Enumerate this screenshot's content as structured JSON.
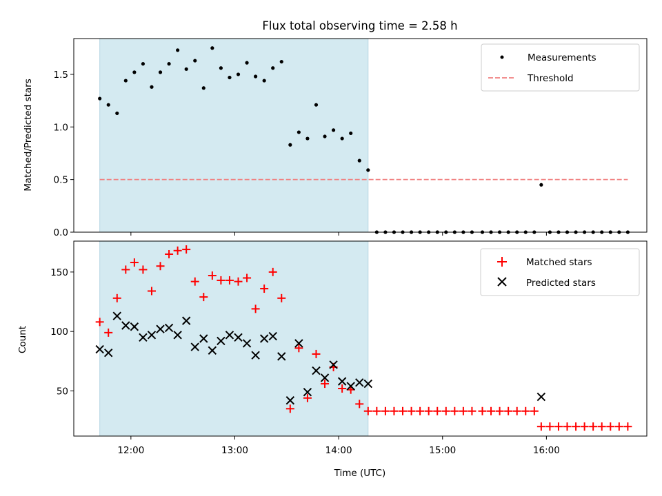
{
  "chart_data": [
    {
      "type": "scatter",
      "title": "Flux total observing time = 2.58 h",
      "ylabel": "Matched/Predicted stars",
      "xlabel": "",
      "xlim": [
        "11:27",
        "16:58"
      ],
      "ylim": [
        0,
        1.84
      ],
      "yticks": [
        0.0,
        0.5,
        1.0,
        1.5
      ],
      "ytick_labels": [
        "0.0",
        "0.5",
        "1.0",
        "1.5"
      ],
      "xticks": [
        "12:00",
        "13:00",
        "14:00",
        "15:00",
        "16:00"
      ],
      "shaded_region": [
        "11:42",
        "14:17"
      ],
      "shaded_color": "#d4eaf1",
      "legend_position": "upper right",
      "series": [
        {
          "name": "Measurements",
          "marker": "dot",
          "color": "#000000",
          "points": [
            [
              "11:42",
              1.27
            ],
            [
              "11:47",
              1.21
            ],
            [
              "11:52",
              1.13
            ],
            [
              "11:57",
              1.44
            ],
            [
              "12:02",
              1.52
            ],
            [
              "12:07",
              1.6
            ],
            [
              "12:12",
              1.38
            ],
            [
              "12:17",
              1.52
            ],
            [
              "12:22",
              1.6
            ],
            [
              "12:27",
              1.73
            ],
            [
              "12:32",
              1.55
            ],
            [
              "12:37",
              1.63
            ],
            [
              "12:42",
              1.37
            ],
            [
              "12:47",
              1.75
            ],
            [
              "12:52",
              1.56
            ],
            [
              "12:57",
              1.47
            ],
            [
              "13:02",
              1.5
            ],
            [
              "13:07",
              1.61
            ],
            [
              "13:12",
              1.48
            ],
            [
              "13:17",
              1.44
            ],
            [
              "13:22",
              1.56
            ],
            [
              "13:27",
              1.62
            ],
            [
              "13:32",
              0.83
            ],
            [
              "13:37",
              0.95
            ],
            [
              "13:42",
              0.89
            ],
            [
              "13:47",
              1.21
            ],
            [
              "13:52",
              0.91
            ],
            [
              "13:57",
              0.97
            ],
            [
              "14:02",
              0.89
            ],
            [
              "14:07",
              0.94
            ],
            [
              "14:12",
              0.68
            ],
            [
              "14:17",
              0.59
            ],
            [
              "14:22",
              0.0
            ],
            [
              "14:27",
              0.0
            ],
            [
              "14:32",
              0.0
            ],
            [
              "14:37",
              0.0
            ],
            [
              "14:42",
              0.0
            ],
            [
              "14:47",
              0.0
            ],
            [
              "14:52",
              0.0
            ],
            [
              "14:57",
              0.0
            ],
            [
              "15:02",
              0.0
            ],
            [
              "15:07",
              0.0
            ],
            [
              "15:12",
              0.0
            ],
            [
              "15:17",
              0.0
            ],
            [
              "15:23",
              0.0
            ],
            [
              "15:28",
              0.0
            ],
            [
              "15:33",
              0.0
            ],
            [
              "15:38",
              0.0
            ],
            [
              "15:43",
              0.0
            ],
            [
              "15:48",
              0.0
            ],
            [
              "15:53",
              0.0
            ],
            [
              "15:57",
              0.45
            ],
            [
              "16:02",
              0.0
            ],
            [
              "16:07",
              0.0
            ],
            [
              "16:12",
              0.0
            ],
            [
              "16:17",
              0.0
            ],
            [
              "16:22",
              0.0
            ],
            [
              "16:27",
              0.0
            ],
            [
              "16:32",
              0.0
            ],
            [
              "16:37",
              0.0
            ],
            [
              "16:42",
              0.0
            ],
            [
              "16:47",
              0.0
            ]
          ]
        },
        {
          "name": "Threshold",
          "marker": "dashed-line",
          "color": "#f08080",
          "points": [
            [
              "11:42",
              0.5
            ],
            [
              "16:47",
              0.5
            ]
          ]
        }
      ]
    },
    {
      "type": "scatter",
      "title": "",
      "ylabel": "Count",
      "xlabel": "Time (UTC)",
      "xlim": [
        "11:27",
        "16:58"
      ],
      "ylim": [
        12,
        176
      ],
      "yticks": [
        50,
        100,
        150
      ],
      "ytick_labels": [
        "50",
        "100",
        "150"
      ],
      "xticks": [
        "12:00",
        "13:00",
        "14:00",
        "15:00",
        "16:00"
      ],
      "shaded_region": [
        "11:42",
        "14:17"
      ],
      "shaded_color": "#d4eaf1",
      "legend_position": "upper right",
      "series": [
        {
          "name": "Matched stars",
          "marker": "plus",
          "color": "#ff0000",
          "points": [
            [
              "11:42",
              108
            ],
            [
              "11:47",
              99
            ],
            [
              "11:52",
              128
            ],
            [
              "11:57",
              152
            ],
            [
              "12:02",
              158
            ],
            [
              "12:07",
              152
            ],
            [
              "12:12",
              134
            ],
            [
              "12:17",
              155
            ],
            [
              "12:22",
              165
            ],
            [
              "12:27",
              168
            ],
            [
              "12:32",
              169
            ],
            [
              "12:37",
              142
            ],
            [
              "12:42",
              129
            ],
            [
              "12:47",
              147
            ],
            [
              "12:52",
              143
            ],
            [
              "12:57",
              143
            ],
            [
              "13:02",
              142
            ],
            [
              "13:07",
              145
            ],
            [
              "13:12",
              119
            ],
            [
              "13:17",
              136
            ],
            [
              "13:22",
              150
            ],
            [
              "13:27",
              128
            ],
            [
              "13:32",
              35
            ],
            [
              "13:37",
              86
            ],
            [
              "13:42",
              44
            ],
            [
              "13:47",
              81
            ],
            [
              "13:52",
              56
            ],
            [
              "13:57",
              70
            ],
            [
              "14:02",
              52
            ],
            [
              "14:07",
              51
            ],
            [
              "14:12",
              39
            ],
            [
              "14:17",
              33
            ],
            [
              "14:22",
              33
            ],
            [
              "14:27",
              33
            ],
            [
              "14:32",
              33
            ],
            [
              "14:37",
              33
            ],
            [
              "14:42",
              33
            ],
            [
              "14:47",
              33
            ],
            [
              "14:52",
              33
            ],
            [
              "14:57",
              33
            ],
            [
              "15:02",
              33
            ],
            [
              "15:07",
              33
            ],
            [
              "15:12",
              33
            ],
            [
              "15:17",
              33
            ],
            [
              "15:23",
              33
            ],
            [
              "15:28",
              33
            ],
            [
              "15:33",
              33
            ],
            [
              "15:38",
              33
            ],
            [
              "15:43",
              33
            ],
            [
              "15:48",
              33
            ],
            [
              "15:53",
              33
            ],
            [
              "15:57",
              20
            ],
            [
              "16:02",
              20
            ],
            [
              "16:07",
              20
            ],
            [
              "16:12",
              20
            ],
            [
              "16:17",
              20
            ],
            [
              "16:22",
              20
            ],
            [
              "16:27",
              20
            ],
            [
              "16:32",
              20
            ],
            [
              "16:37",
              20
            ],
            [
              "16:42",
              20
            ],
            [
              "16:47",
              20
            ]
          ]
        },
        {
          "name": "Predicted stars",
          "marker": "x",
          "color": "#000000",
          "points": [
            [
              "11:42",
              85
            ],
            [
              "11:47",
              82
            ],
            [
              "11:52",
              113
            ],
            [
              "11:57",
              105
            ],
            [
              "12:02",
              104
            ],
            [
              "12:07",
              95
            ],
            [
              "12:12",
              97
            ],
            [
              "12:17",
              102
            ],
            [
              "12:22",
              103
            ],
            [
              "12:27",
              97
            ],
            [
              "12:32",
              109
            ],
            [
              "12:37",
              87
            ],
            [
              "12:42",
              94
            ],
            [
              "12:47",
              84
            ],
            [
              "12:52",
              92
            ],
            [
              "12:57",
              97
            ],
            [
              "13:02",
              95
            ],
            [
              "13:07",
              90
            ],
            [
              "13:12",
              80
            ],
            [
              "13:17",
              94
            ],
            [
              "13:22",
              96
            ],
            [
              "13:27",
              79
            ],
            [
              "13:32",
              42
            ],
            [
              "13:37",
              90
            ],
            [
              "13:42",
              49
            ],
            [
              "13:47",
              67
            ],
            [
              "13:52",
              61
            ],
            [
              "13:57",
              72
            ],
            [
              "14:02",
              58
            ],
            [
              "14:07",
              54
            ],
            [
              "14:12",
              57
            ],
            [
              "14:17",
              56
            ],
            [
              "15:57",
              45
            ]
          ]
        }
      ]
    }
  ]
}
